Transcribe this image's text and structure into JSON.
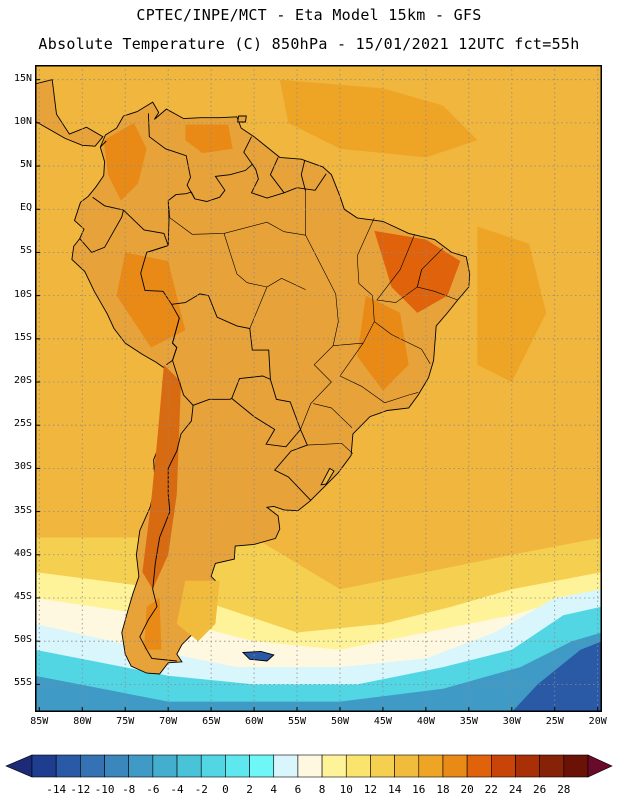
{
  "title": {
    "line1": "CPTEC/INPE/MCT -  Eta Model 15km - GFS",
    "line2": "Absolute Temperature (C) 850hPa - 15/01/2021 12UTC fct=55h"
  },
  "map": {
    "lat_labels": [
      "15N",
      "10N",
      "5N",
      "EQ",
      "5S",
      "10S",
      "15S",
      "20S",
      "25S",
      "30S",
      "35S",
      "40S",
      "45S",
      "50S",
      "55S"
    ],
    "lat_values": [
      15,
      10,
      5,
      0,
      -5,
      -10,
      -15,
      -20,
      -25,
      -30,
      -35,
      -40,
      -45,
      -50,
      -55
    ],
    "lon_labels": [
      "85W",
      "80W",
      "75W",
      "70W",
      "65W",
      "60W",
      "55W",
      "50W",
      "45W",
      "40W",
      "35W",
      "30W",
      "25W",
      "20W"
    ],
    "lon_values": [
      -85,
      -80,
      -75,
      -70,
      -65,
      -60,
      -55,
      -50,
      -45,
      -40,
      -35,
      -30,
      -25,
      -20
    ],
    "lon_range": [
      -85.5,
      -19.5
    ],
    "lat_range": [
      -58.2,
      16.7
    ],
    "land_color": "#e8a23a",
    "ocean_color": "#f0b63d"
  },
  "colorbar": {
    "labels": [
      "-14",
      "-12",
      "-10",
      "-8",
      "-6",
      "-4",
      "-2",
      "0",
      "2",
      "4",
      "6",
      "8",
      "10",
      "12",
      "14",
      "16",
      "18",
      "20",
      "22",
      "24",
      "26",
      "28"
    ],
    "colors": [
      "#1f3d8f",
      "#2a5aa6",
      "#3472b3",
      "#3b86bd",
      "#3f9ac6",
      "#43aece",
      "#48c3d8",
      "#52d6e4",
      "#5ee7ee",
      "#6ff7f7",
      "#d8f6fb",
      "#fff8e0",
      "#fff39a",
      "#fbe46e",
      "#f5d050",
      "#f1bb3b",
      "#eea526",
      "#e98a17",
      "#e0620b",
      "#c94408",
      "#a82f06",
      "#862208",
      "#6a1206"
    ],
    "left_arrow_color": "#1c2a78",
    "right_arrow_color": "#6a0a2a"
  }
}
